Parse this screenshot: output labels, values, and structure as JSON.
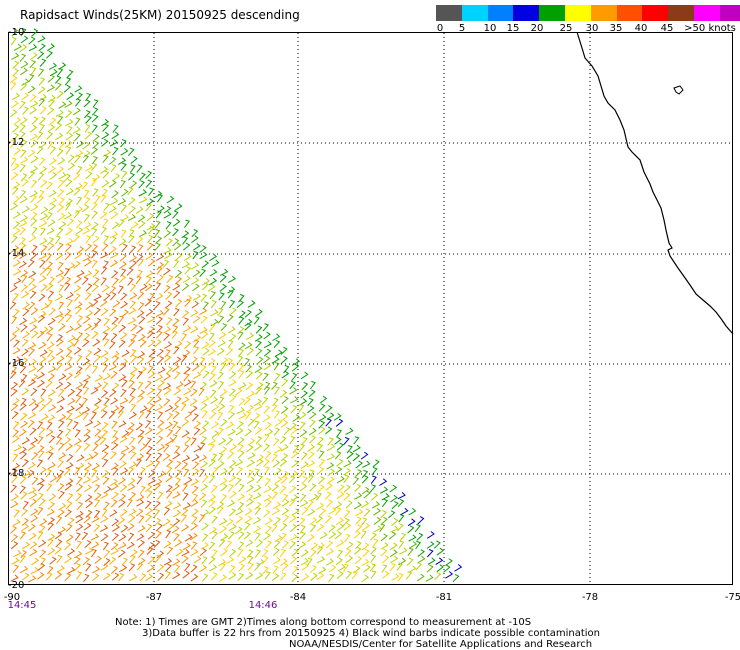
{
  "title": "Rapidsact Winds(25KM) 20150925 descending",
  "legend": {
    "labels": [
      "0",
      "5",
      "10",
      "15",
      "20",
      "25",
      "30",
      "35",
      "40",
      "45",
      ">50 knots"
    ],
    "colors": [
      "#555555",
      "#00d2ff",
      "#0080ff",
      "#0000e0",
      "#00a000",
      "#ffff00",
      "#ff9a00",
      "#ff5000",
      "#ff0000",
      "#8b3a1a",
      "#ff00ff",
      "#c000c0",
      "#600090"
    ]
  },
  "map": {
    "lat_labels": [
      "-10",
      "-12",
      "-14",
      "-16",
      "-18",
      "-20"
    ],
    "lon_labels": [
      "-90",
      "-87",
      "-84",
      "-81",
      "-78",
      "-75"
    ],
    "time_labels": [
      "14:45",
      "14:46"
    ]
  },
  "notes": {
    "line1": "Note: 1) Times are GMT 2)Times along bottom correspond to measurement at -10S",
    "line2": "3)Data buffer is 22 hrs from 20150925 4) Black wind barbs indicate possible contamination",
    "line3": "NOAA/NESDIS/Center for Satellite Applications and Research"
  }
}
